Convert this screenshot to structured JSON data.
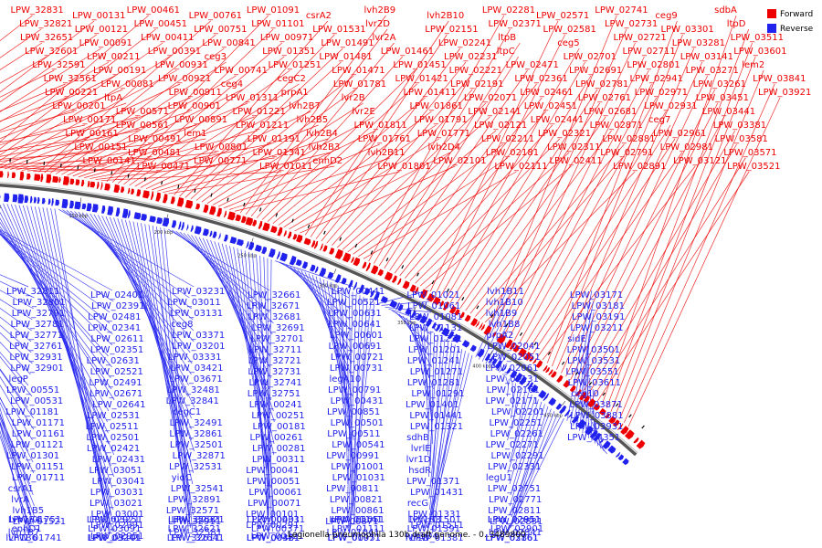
{
  "caption": "Legionella pneumophila 130b draft genome. - 0..3489800",
  "legend": [
    {
      "label": "Forward",
      "color": "#ee0000"
    },
    {
      "label": "Reverse",
      "color": "#2222ee"
    }
  ],
  "colors": {
    "forward": "#ee0000",
    "reverse": "#2222ee",
    "backbone": "#555555"
  },
  "scale_ticks": [
    "50 kbp",
    "100 kbp",
    "150 kbp",
    "200 kbp",
    "250 kbp",
    "300 kbp",
    "350 kbp",
    "400 kbp",
    "450 kbp"
  ],
  "forward_labels": [
    "LPW_32831",
    "LPW_32821",
    "LPW_32651",
    "LPW_32601",
    "LPW_32591",
    "LPW_32561",
    "LPW_00221",
    "LPW_00201",
    "LPW_00171",
    "LPW_00161",
    "LPW_00151",
    "LPW_00141",
    "LPW_00131",
    "LPW_00121",
    "LPW_00091",
    "LPW_00211",
    "LPW_00191",
    "LPW_00081",
    "ltpA",
    "LPW_00571",
    "LPW_00561",
    "LPW_00491",
    "LPW_00481",
    "LPW_00471",
    "LPW_00461",
    "LPW_00451",
    "LPW_00411",
    "LPW_00391",
    "LPW_00931",
    "LPW_00921",
    "LPW_00911",
    "LPW_00901",
    "LPW_00891",
    "lem1",
    "LPW_00801",
    "LPW_00771",
    "LPW_00761",
    "LPW_00751",
    "LPW_00841",
    "ceg3",
    "LPW_00741",
    "ceg4",
    "LPW_01311",
    "LPW_01221",
    "LPW_01211",
    "LPW_01191",
    "LPW_01341",
    "LPW_01011",
    "LPW_01091",
    "LPW_01101",
    "LPW_00971",
    "LPW_01351",
    "LPW_01251",
    "cegC2",
    "prpA1",
    "lvh2B7",
    "lvh2B5",
    "lvh2B4",
    "lvh2B3",
    "enhD2",
    "csrA2",
    "LPW_01531",
    "LPW_01491",
    "LPW_01481",
    "LPW_01471",
    "LPW_01781",
    "lvr2B",
    "lvr2E",
    "LPW_01811",
    "LPW_01761",
    "lvh2B11",
    "LPW_01801",
    "lvh2B9",
    "lvr2D",
    "lvr2A",
    "LPW_01461",
    "LPW_01451",
    "LPW_01421",
    "LPW_01411",
    "LPW_01861",
    "LPW_01791",
    "LPW_01771",
    "lvh2D4",
    "LPW_02101",
    "lvh2B10",
    "LPW_02151",
    "LPW_02241",
    "LPW_02231",
    "LPW_02221",
    "LPW_02191",
    "LPW_02071",
    "LPW_02141",
    "LPW_02121",
    "LPW_02211",
    "LPW_02181",
    "LPW_02111",
    "LPW_02281",
    "LPW_02371",
    "ltpB",
    "ltpC",
    "LPW_02471",
    "LPW_02361",
    "LPW_02461",
    "LPW_02451",
    "LPW_02441",
    "LPW_02321",
    "LPW_02311",
    "LPW_02411",
    "LPW_02571",
    "LPW_02581",
    "ceg5",
    "LPW_02701",
    "LPW_02691",
    "LPW_02781",
    "LPW_02761",
    "LPW_02681",
    "LPW_02871",
    "LPW_02881",
    "LPW_02791",
    "LPW_02891",
    "LPW_02741",
    "LPW_02731",
    "LPW_02721",
    "LPW_02711",
    "LPW_02801",
    "LPW_02941",
    "LPW_02971",
    "LPW_02931",
    "ceg7",
    "LPW_02961",
    "LPW_02981",
    "LPW_03121",
    "ceg9",
    "LPW_03301",
    "LPW_03281",
    "LPW_03141",
    "LPW_03271",
    "LPW_03261",
    "LPW_03451",
    "LPW_03441",
    "LPW_03381",
    "LPW_03581",
    "LPW_03571",
    "LPW_03521",
    "sdbA",
    "ltpD",
    "LPW_03511",
    "LPW_03601",
    "lem2",
    "LPW_03841",
    "LPW_03921"
  ],
  "reverse_labels": [
    "LPW_32811",
    "LPW_32801",
    "LPW_32791",
    "LPW_32781",
    "LPW_32771",
    "LPW_32761",
    "LPW_32931",
    "LPW_32901",
    "legP",
    "LPW_00551",
    "LPW_00531",
    "LPW_01181",
    "LPW_01171",
    "LPW_01161",
    "LPW_01121",
    "LPW_01301",
    "LPW_01151",
    "LPW_01711",
    "csrA1",
    "lvrA",
    "lvh1B5",
    "LPW_01521",
    "lvh1B7",
    "LPW_01751",
    "LPW_01741",
    "enhD1",
    "lvh1B4",
    "lvh1B6",
    "LPW_02401",
    "LPW_02391",
    "LPW_02481",
    "LPW_02341",
    "LPW_02611",
    "LPW_02351",
    "LPW_02631",
    "LPW_02521",
    "LPW_02491",
    "LPW_02671",
    "LPW_02641",
    "LPW_02531",
    "LPW_02511",
    "LPW_02501",
    "LPW_02421",
    "LPW_02431",
    "LPW_03051",
    "LPW_03041",
    "LPW_03031",
    "LPW_03021",
    "LPW_03001",
    "LPW_02991",
    "LPW_02951",
    "LPW_02921",
    "LPW_03101",
    "LPW_03091",
    "LPW_03251",
    "LPW_03241",
    "LPW_03231",
    "LPW_03011",
    "LPW_03131",
    "ceg8",
    "LPW_03371",
    "LPW_03201",
    "LPW_03331",
    "LPW_03421",
    "LPW_03671",
    "LPW_32481",
    "LPW_32841",
    "cegC1",
    "LPW_32491",
    "LPW_32861",
    "LPW_32501",
    "LPW_32871",
    "LPW_32531",
    "yidC",
    "LPW_32541",
    "LPW_32891",
    "LPW_32571",
    "LPW_32911",
    "LPW_32581",
    "LPW_32921",
    "LPW_32611",
    "LPW_32621",
    "LPW_32631",
    "LPW_32641",
    "LPW_32661",
    "LPW_32671",
    "LPW_32681",
    "LPW_32691",
    "LPW_32701",
    "LPW_32711",
    "LPW_32721",
    "LPW_32731",
    "LPW_32741",
    "LPW_32751",
    "LPW_00241",
    "LPW_00251",
    "LPW_00181",
    "LPW_00261",
    "LPW_00281",
    "LPW_00311",
    "LPW_00041",
    "LPW_00051",
    "LPW_00061",
    "LPW_00071",
    "LPW_00101",
    "LPW_00291",
    "LPW_00321",
    "LPW_00331",
    "LPW_00361",
    "LPW_00371",
    "LPW_00401",
    "LPW_00421",
    "LPW_00441",
    "LPW_00521",
    "LPW_00631",
    "LPW_00641",
    "LPW_00601",
    "LPW_00691",
    "LPW_00721",
    "LPW_00731",
    "legA10",
    "LPW_00791",
    "LPW_00431",
    "LPW_00851",
    "LPW_00501",
    "LPW_00511",
    "LPW_00541",
    "LPW_00991",
    "LPW_01001",
    "LPW_01031",
    "LPW_00811",
    "LPW_00821",
    "LPW_00861",
    "LPW_00871",
    "LPW_01041",
    "LPW_01051",
    "LPW_01071",
    "LPW_01111",
    "LPW_01141",
    "LPW_00951",
    "LPW_01021",
    "LPW_01061",
    "LPW_01081",
    "LPW_01131",
    "LPW_01231",
    "LPW_01201",
    "LPW_01241",
    "LPW_01271",
    "LPW_01281",
    "LPW_01291",
    "LPW_01401",
    "LPW_01441",
    "LPW_01321",
    "sdhB",
    "lvrlE",
    "lvr1D",
    "hsdR",
    "LPW_01371",
    "LPW_01431",
    "recG",
    "LPW_01331",
    "LPW_01511",
    "lvh1D4",
    "lvh1B3",
    "LPW_01381",
    "LPW_01391",
    "LPW_01501",
    "lvr1B",
    "lvh1B11",
    "lvh1B10",
    "lvh1B9",
    "lvh1B8",
    "prpA2",
    "LPW_02041",
    "LPW_02051",
    "LPW_02061",
    "LPW_02131",
    "LPW_02161",
    "LPW_02171",
    "LPW_02201",
    "LPW_02251",
    "LPW_02261",
    "LPW_02271",
    "LPW_02291",
    "LPW_02331",
    "legU1",
    "LPW_02751",
    "LPW_02771",
    "LPW_02811",
    "LPW_02831",
    "LPW_02841",
    "LPW_02851",
    "LPW_02861",
    "LPW_02901",
    "LPW_02911",
    "LPW_03161",
    "LPW_03171",
    "LPW_03181",
    "LPW_03191",
    "LPW_03211",
    "sidE",
    "LPW_03501",
    "LPW_03531",
    "LPW_03551",
    "LPW_03611",
    "ceg10",
    "LPW_03871",
    "LPW_03881",
    "LPW_03931",
    "LPW_04351"
  ]
}
